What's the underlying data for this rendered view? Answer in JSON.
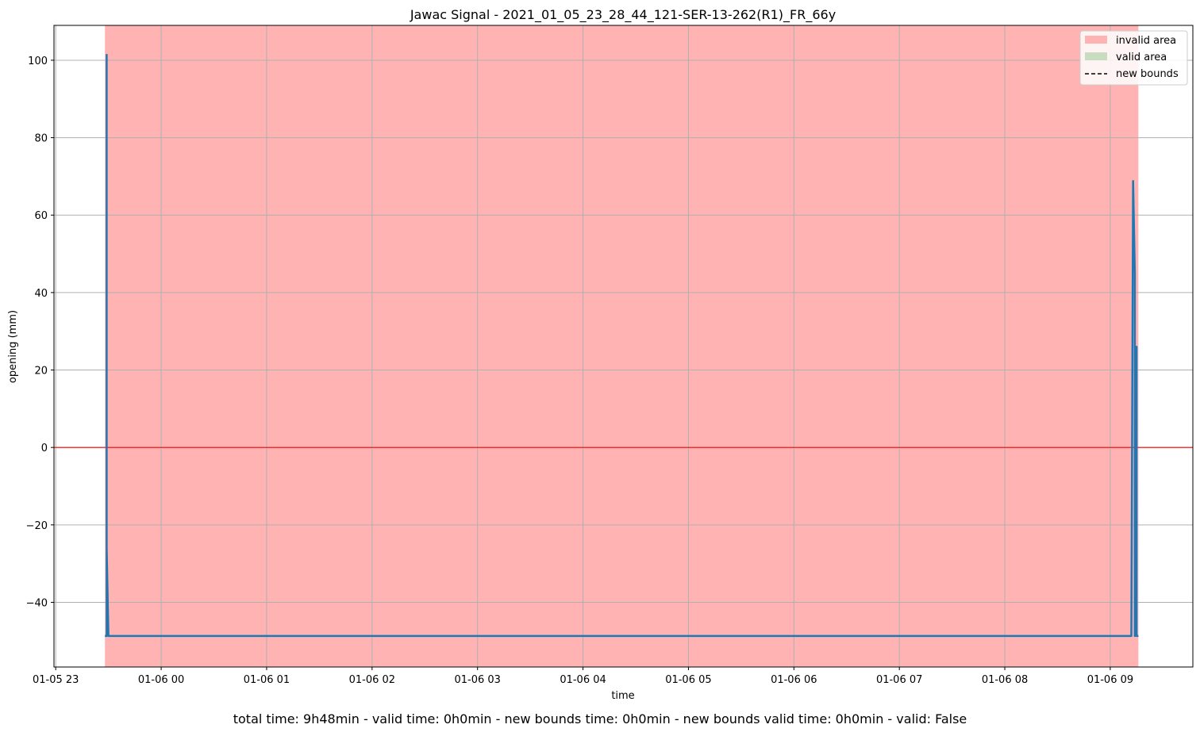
{
  "chart_data": {
    "type": "line",
    "title": "Jawac Signal - 2021_01_05_23_28_44_121-SER-13-262(R1)_FR_66y",
    "xlabel": "time",
    "ylabel": "opening (mm)",
    "x_tick_labels": [
      "01-05 23",
      "01-06 00",
      "01-06 01",
      "01-06 02",
      "01-06 03",
      "01-06 04",
      "01-06 05",
      "01-06 06",
      "01-06 07",
      "01-06 08",
      "01-06 09"
    ],
    "y_ticks": [
      -40,
      -20,
      0,
      20,
      40,
      60,
      80,
      100
    ],
    "y_tick_labels": [
      "−40",
      "−20",
      "0",
      "20",
      "40",
      "60",
      "80",
      "100"
    ],
    "xlim": [
      "2021-01-05 22:59",
      "2021-01-06 09:47"
    ],
    "ylim": [
      -56.7,
      109
    ],
    "grid": true,
    "legend_position": "upper-right",
    "legend": [
      {
        "label": "invalid area",
        "kind": "patch",
        "color": "#ffb3b3"
      },
      {
        "label": "valid area",
        "kind": "patch",
        "color": "#c9dcbf"
      },
      {
        "label": "new bounds",
        "kind": "dashed-line",
        "color": "#000000"
      }
    ],
    "invalid_area": {
      "start": "2021-01-05 23:28",
      "end": "2021-01-06 09:16",
      "color": "#ffb3b3"
    },
    "zero_line": {
      "y": 0,
      "color": "#ff0000"
    },
    "series": [
      {
        "color": "#1f77b4",
        "x": [
          "2021-01-05 23:28",
          "2021-01-05 23:29",
          "2021-01-05 23:29",
          "2021-01-05 23:29",
          "2021-01-05 23:30",
          "2021-01-06 09:12",
          "2021-01-06 09:13",
          "2021-01-06 09:14",
          "2021-01-06 09:14",
          "2021-01-06 09:14",
          "2021-01-06 09:15",
          "2021-01-06 09:15",
          "2021-01-06 09:15",
          "2021-01-06 09:16"
        ],
        "y": [
          -48.7,
          -48.7,
          101.4,
          -26,
          -48.7,
          -48.7,
          68.8,
          45,
          -48.7,
          17,
          26,
          -48.7,
          -48.7,
          -48.7
        ]
      }
    ]
  },
  "footer": {
    "summary": "total time: 9h48min - valid time: 0h0min - new bounds time: 0h0min - new bounds valid time: 0h0min - valid: False"
  }
}
